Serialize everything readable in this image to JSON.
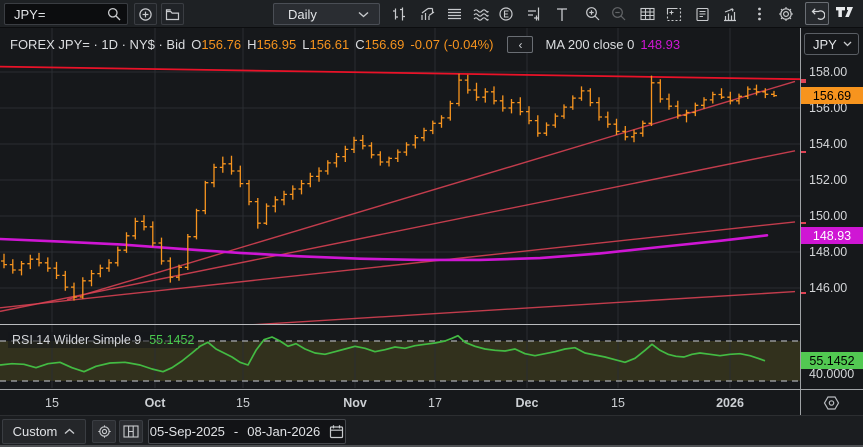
{
  "topbar": {
    "symbol": "JPY=",
    "interval": "Daily",
    "icons": [
      "search",
      "add-instrument",
      "open-folder",
      "interval-chevron",
      "chart-style",
      "indicators",
      "layout-rows",
      "patterns",
      "events",
      "compare",
      "text-tool",
      "zoom-in",
      "zoom-out",
      "data-table",
      "expand-chart",
      "news",
      "performance",
      "more-options",
      "settings",
      "undo",
      "tradingview-logo"
    ]
  },
  "header": {
    "series": "FOREX JPY= · 1D · NY$ · Bid",
    "ohlc": [
      {
        "label": "O",
        "value": "156.76"
      },
      {
        "label": "H",
        "value": "156.95"
      },
      {
        "label": "L",
        "value": "156.61"
      },
      {
        "label": "C",
        "value": "156.69"
      }
    ],
    "change": "-0.07 (-0.04%)",
    "collapse_icon": "‹",
    "indicator_label": "MA 200 close 0",
    "indicator_value": "148.93"
  },
  "price_axis": {
    "currency": "JPY",
    "last_price_label": "156.69",
    "ma_price_label": "148.93"
  },
  "rsi_panel": {
    "label": "RSI 14 Wilder Simple 9",
    "value_label": "55.1452",
    "lower_band_label": "40.0000"
  },
  "bottombar": {
    "range_label": "Custom",
    "date_from": "05-Sep-2025",
    "date_separator": "-",
    "date_to": "08-Jan-2026"
  },
  "colors": {
    "background": "#16181b",
    "grid": "#2a2d31",
    "bar": "#f7941e",
    "last_badge_bg": "#f7941e",
    "ma_line": "#cf16d4",
    "ma_badge_bg": "#cf16d4",
    "trend_top": "#ea1228",
    "trend_fan": "#e04355",
    "rsi_line": "#43bb43",
    "rsi_badge_bg": "#52c952",
    "rsi_band_fill": "rgba(165,148,40,0.20)",
    "rsi_band_line": "#a9abb0"
  },
  "chart_data": {
    "type": "ohlc-bars+rsi",
    "title": "FOREX JPY= 1D NY$ Bid",
    "last_price": 156.69,
    "ma_last": 148.93,
    "rsi_current": 55.1452,
    "price_ticks": [
      {
        "p": 158,
        "label": "158.00"
      },
      {
        "p": 156,
        "label": "156.00"
      },
      {
        "p": 154,
        "label": "154.00"
      },
      {
        "p": 152,
        "label": "152.00"
      },
      {
        "p": 150,
        "label": "150.00"
      },
      {
        "p": 148,
        "label": "148.00"
      },
      {
        "p": 146,
        "label": "146.00"
      }
    ],
    "time_ticks": [
      {
        "x": 52,
        "label": "15",
        "major": false
      },
      {
        "x": 155,
        "label": "Oct",
        "major": true
      },
      {
        "x": 243,
        "label": "15",
        "major": false
      },
      {
        "x": 355,
        "label": "Nov",
        "major": true
      },
      {
        "x": 435,
        "label": "17",
        "major": false
      },
      {
        "x": 527,
        "label": "Dec",
        "major": true
      },
      {
        "x": 618,
        "label": "15",
        "major": false
      },
      {
        "x": 730,
        "label": "2026",
        "major": true
      }
    ],
    "bars": [
      [
        147.5,
        147.9,
        147.1,
        147.3
      ],
      [
        147.3,
        147.6,
        146.8,
        147.0
      ],
      [
        147.0,
        147.5,
        146.7,
        147.35
      ],
      [
        147.35,
        147.85,
        147.05,
        147.6
      ],
      [
        147.6,
        147.95,
        147.2,
        147.4
      ],
      [
        147.4,
        147.7,
        146.9,
        147.1
      ],
      [
        147.1,
        147.45,
        146.5,
        146.7
      ],
      [
        146.7,
        146.95,
        145.85,
        146.05
      ],
      [
        146.05,
        146.3,
        145.3,
        145.5
      ],
      [
        145.5,
        146.6,
        145.4,
        146.4
      ],
      [
        146.4,
        147.0,
        146.1,
        146.8
      ],
      [
        146.8,
        147.3,
        146.6,
        147.1
      ],
      [
        147.1,
        147.6,
        146.9,
        147.4
      ],
      [
        147.4,
        148.3,
        147.2,
        148.1
      ],
      [
        148.1,
        149.1,
        147.95,
        148.9
      ],
      [
        148.9,
        149.9,
        148.7,
        149.7
      ],
      [
        149.7,
        150.05,
        149.2,
        149.4
      ],
      [
        149.4,
        149.7,
        148.3,
        148.5
      ],
      [
        148.5,
        148.8,
        147.3,
        147.5
      ],
      [
        147.5,
        147.7,
        146.3,
        146.6
      ],
      [
        146.6,
        147.3,
        146.4,
        147.15
      ],
      [
        147.15,
        149.0,
        147.0,
        148.85
      ],
      [
        148.85,
        150.4,
        148.7,
        150.3
      ],
      [
        150.3,
        151.95,
        150.1,
        151.85
      ],
      [
        151.85,
        152.9,
        151.6,
        152.7
      ],
      [
        152.7,
        153.3,
        152.4,
        152.9
      ],
      [
        152.9,
        153.35,
        152.3,
        152.5
      ],
      [
        152.5,
        152.8,
        151.6,
        151.8
      ],
      [
        151.8,
        152.0,
        150.6,
        150.8
      ],
      [
        150.8,
        151.0,
        149.3,
        149.6
      ],
      [
        149.6,
        150.7,
        149.5,
        150.55
      ],
      [
        150.55,
        151.1,
        150.2,
        150.9
      ],
      [
        150.9,
        151.4,
        150.6,
        151.2
      ],
      [
        151.2,
        151.7,
        150.9,
        151.5
      ],
      [
        151.5,
        152.0,
        151.2,
        151.8
      ],
      [
        151.8,
        152.4,
        151.6,
        152.2
      ],
      [
        152.2,
        152.7,
        151.9,
        152.5
      ],
      [
        152.5,
        153.1,
        152.3,
        152.95
      ],
      [
        152.95,
        153.5,
        152.7,
        153.3
      ],
      [
        153.3,
        153.9,
        153.0,
        153.7
      ],
      [
        153.7,
        154.4,
        153.5,
        154.2
      ],
      [
        154.2,
        154.5,
        153.7,
        153.9
      ],
      [
        153.9,
        154.1,
        153.2,
        153.4
      ],
      [
        153.4,
        153.6,
        152.8,
        153.0
      ],
      [
        153.0,
        153.3,
        152.75,
        153.2
      ],
      [
        153.2,
        153.7,
        153.0,
        153.55
      ],
      [
        153.55,
        154.1,
        153.35,
        153.95
      ],
      [
        153.95,
        154.5,
        153.75,
        154.35
      ],
      [
        154.35,
        154.9,
        154.15,
        154.75
      ],
      [
        154.75,
        155.3,
        154.55,
        155.15
      ],
      [
        155.15,
        155.6,
        154.9,
        155.45
      ],
      [
        155.45,
        156.4,
        155.3,
        156.25
      ],
      [
        156.25,
        157.9,
        156.1,
        157.55
      ],
      [
        157.55,
        157.85,
        156.8,
        157.0
      ],
      [
        157.0,
        157.4,
        156.4,
        156.6
      ],
      [
        156.6,
        157.1,
        156.3,
        156.9
      ],
      [
        156.9,
        157.2,
        156.2,
        156.4
      ],
      [
        156.4,
        156.7,
        155.8,
        156.0
      ],
      [
        156.0,
        156.5,
        155.7,
        156.3
      ],
      [
        156.3,
        156.6,
        155.6,
        155.8
      ],
      [
        155.8,
        156.1,
        155.1,
        155.3
      ],
      [
        155.3,
        155.6,
        154.4,
        154.6
      ],
      [
        154.6,
        155.2,
        154.45,
        155.05
      ],
      [
        155.05,
        155.7,
        154.9,
        155.55
      ],
      [
        155.55,
        156.2,
        155.4,
        156.05
      ],
      [
        156.05,
        156.7,
        155.9,
        156.55
      ],
      [
        156.55,
        157.2,
        156.4,
        156.95
      ],
      [
        156.95,
        157.1,
        156.1,
        156.3
      ],
      [
        156.3,
        156.6,
        155.3,
        155.5
      ],
      [
        155.5,
        155.8,
        154.9,
        155.1
      ],
      [
        155.1,
        155.4,
        154.5,
        154.7
      ],
      [
        154.7,
        155.0,
        154.2,
        154.4
      ],
      [
        154.4,
        154.8,
        154.1,
        154.6
      ],
      [
        154.6,
        155.3,
        154.4,
        155.15
      ],
      [
        155.15,
        157.8,
        155.0,
        157.4
      ],
      [
        157.4,
        157.6,
        156.3,
        156.5
      ],
      [
        156.5,
        156.8,
        155.9,
        156.1
      ],
      [
        156.1,
        156.4,
        155.4,
        155.6
      ],
      [
        155.6,
        155.9,
        155.2,
        155.75
      ],
      [
        155.75,
        156.3,
        155.55,
        156.15
      ],
      [
        156.15,
        156.6,
        155.95,
        156.45
      ],
      [
        156.45,
        156.9,
        156.25,
        156.75
      ],
      [
        156.75,
        157.1,
        156.5,
        156.6
      ],
      [
        156.6,
        156.9,
        156.2,
        156.4
      ],
      [
        156.4,
        156.8,
        156.2,
        156.65
      ],
      [
        156.65,
        157.2,
        156.5,
        157.05
      ],
      [
        157.05,
        157.3,
        156.7,
        156.9
      ],
      [
        156.9,
        157.1,
        156.55,
        156.76
      ],
      [
        156.76,
        156.95,
        156.61,
        156.69
      ]
    ],
    "ma200": {
      "period": 200,
      "points": [
        [
          0,
          148.72
        ],
        [
          60,
          148.58
        ],
        [
          120,
          148.42
        ],
        [
          180,
          148.18
        ],
        [
          240,
          147.95
        ],
        [
          300,
          147.76
        ],
        [
          360,
          147.63
        ],
        [
          420,
          147.56
        ],
        [
          480,
          147.56
        ],
        [
          540,
          147.66
        ],
        [
          600,
          147.92
        ],
        [
          660,
          148.28
        ],
        [
          720,
          148.62
        ],
        [
          767,
          148.93
        ]
      ]
    },
    "trendlines": [
      {
        "x1": 0,
        "p1": 158.3,
        "x2": 800,
        "p2": 157.6,
        "kind": "top"
      },
      {
        "x1": 67,
        "p1": 145.35,
        "x2": 795,
        "p2": 157.48,
        "kind": "fan"
      },
      {
        "x1": 0,
        "p1": 144.7,
        "x2": 795,
        "p2": 153.62,
        "kind": "fan"
      },
      {
        "x1": 0,
        "p1": 144.9,
        "x2": 795,
        "p2": 149.67,
        "kind": "fan"
      },
      {
        "x1": 0,
        "p1": 143.1,
        "x2": 795,
        "p2": 145.8,
        "kind": "fan"
      }
    ],
    "rsi": {
      "upper_band": 70,
      "lower_band": 40,
      "points": [
        [
          0,
          52
        ],
        [
          12,
          53
        ],
        [
          24,
          52.5
        ],
        [
          36,
          50
        ],
        [
          48,
          53
        ],
        [
          60,
          54
        ],
        [
          72,
          50
        ],
        [
          84,
          47
        ],
        [
          96,
          51
        ],
        [
          110,
          53.5
        ],
        [
          125,
          54
        ],
        [
          140,
          52
        ],
        [
          152,
          49
        ],
        [
          163,
          47
        ],
        [
          172,
          50
        ],
        [
          182,
          55
        ],
        [
          192,
          61
        ],
        [
          200,
          66
        ],
        [
          208,
          69
        ],
        [
          216,
          64
        ],
        [
          224,
          61
        ],
        [
          232,
          58
        ],
        [
          240,
          54
        ],
        [
          248,
          52
        ],
        [
          256,
          63
        ],
        [
          264,
          71
        ],
        [
          272,
          73
        ],
        [
          280,
          70
        ],
        [
          288,
          66
        ],
        [
          296,
          68
        ],
        [
          305,
          64
        ],
        [
          315,
          61
        ],
        [
          325,
          60
        ],
        [
          335,
          62
        ],
        [
          345,
          64
        ],
        [
          355,
          66
        ],
        [
          365,
          64.5
        ],
        [
          375,
          62
        ],
        [
          385,
          63.5
        ],
        [
          395,
          65.5
        ],
        [
          405,
          64.5
        ],
        [
          415,
          66.5
        ],
        [
          425,
          67.5
        ],
        [
          435,
          68.5
        ],
        [
          445,
          70
        ],
        [
          452,
          72
        ],
        [
          458,
          74
        ],
        [
          465,
          69
        ],
        [
          475,
          66
        ],
        [
          485,
          64
        ],
        [
          495,
          63
        ],
        [
          505,
          62.5
        ],
        [
          515,
          64
        ],
        [
          525,
          60.5
        ],
        [
          535,
          59
        ],
        [
          545,
          60.5
        ],
        [
          555,
          62
        ],
        [
          565,
          64
        ],
        [
          575,
          65
        ],
        [
          585,
          61
        ],
        [
          595,
          59.5
        ],
        [
          605,
          58
        ],
        [
          615,
          56
        ],
        [
          625,
          54
        ],
        [
          635,
          57
        ],
        [
          645,
          63
        ],
        [
          652,
          67.5
        ],
        [
          660,
          63
        ],
        [
          668,
          60
        ],
        [
          676,
          58.5
        ],
        [
          684,
          58
        ],
        [
          692,
          60
        ],
        [
          700,
          61
        ],
        [
          710,
          60
        ],
        [
          720,
          59
        ],
        [
          730,
          60
        ],
        [
          740,
          60.5
        ],
        [
          750,
          59
        ],
        [
          758,
          57
        ],
        [
          765,
          55.15
        ]
      ]
    }
  }
}
